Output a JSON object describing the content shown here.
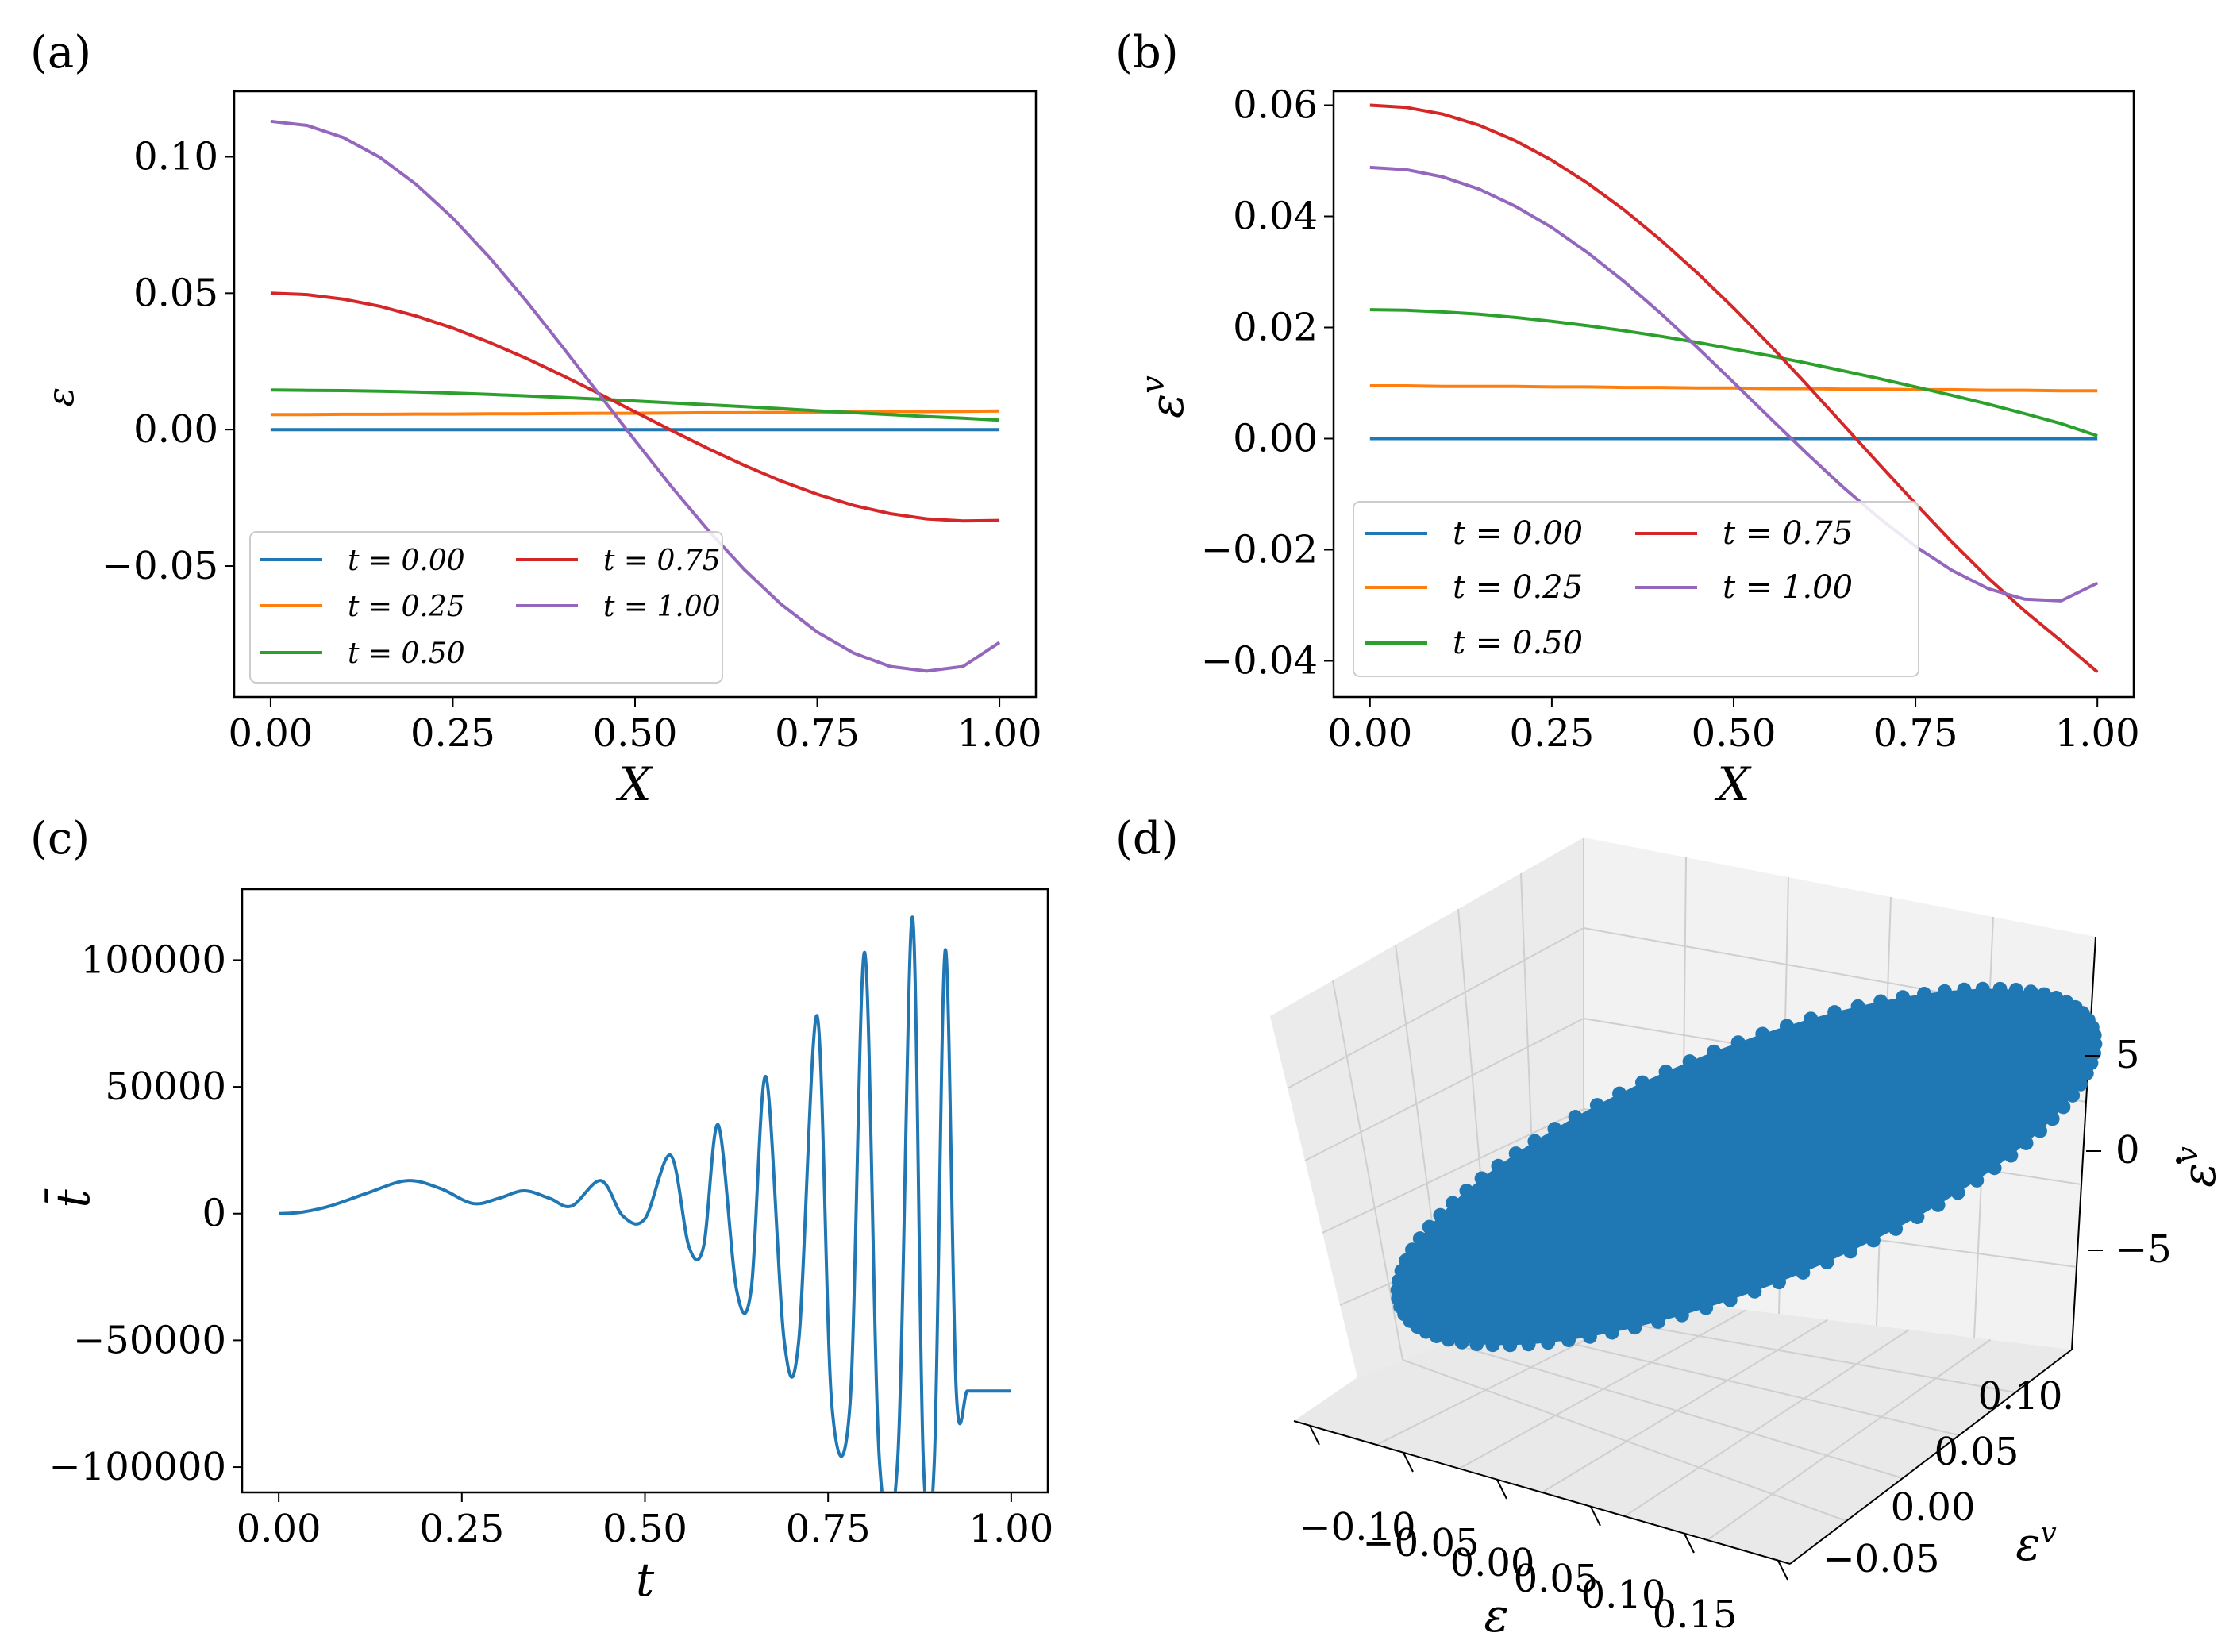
{
  "panels": {
    "a": {
      "label": "(a)",
      "type": "line",
      "xlabel": "X",
      "ylabel": "ε",
      "xlim": [
        -0.05,
        1.05
      ],
      "ylim": [
        -0.098,
        0.124
      ],
      "xticks": [
        0.0,
        0.25,
        0.5,
        0.75,
        1.0
      ],
      "xtick_labels": [
        "0.00",
        "0.25",
        "0.50",
        "0.75",
        "1.00"
      ],
      "yticks": [
        0.1,
        0.05,
        0.0,
        -0.05
      ],
      "ytick_labels": [
        "0.10",
        "0.05",
        "0.00",
        "−0.05"
      ],
      "legend_labels": [
        "t = 0.00",
        "t = 0.25",
        "t = 0.50",
        "t = 0.75",
        "t = 1.00"
      ],
      "series": [
        {
          "name": "t = 0.00",
          "color": "#1f77b4",
          "values": [
            0,
            0,
            0,
            0,
            0,
            0,
            0,
            0,
            0,
            0,
            0,
            0,
            0,
            0,
            0,
            0,
            0,
            0,
            0,
            0,
            0
          ]
        },
        {
          "name": "t = 0.25",
          "color": "#ff7f0e",
          "values": [
            0.0055,
            0.0055,
            0.0056,
            0.0056,
            0.0057,
            0.0057,
            0.0058,
            0.0058,
            0.0059,
            0.006,
            0.006,
            0.0061,
            0.0062,
            0.0062,
            0.0063,
            0.0064,
            0.0065,
            0.0066,
            0.0066,
            0.0067,
            0.0068
          ]
        },
        {
          "name": "t = 0.50",
          "color": "#2ca02c",
          "values": [
            0.0145,
            0.0144,
            0.0143,
            0.0141,
            0.0138,
            0.0134,
            0.0129,
            0.0124,
            0.0118,
            0.0112,
            0.0105,
            0.0098,
            0.0091,
            0.0084,
            0.0077,
            0.0069,
            0.0062,
            0.0055,
            0.0048,
            0.0042,
            0.0035
          ]
        },
        {
          "name": "t = 0.75",
          "color": "#d62728",
          "values": [
            0.05,
            0.0495,
            0.0478,
            0.0452,
            0.0416,
            0.0372,
            0.032,
            0.0262,
            0.0199,
            0.0133,
            0.0065,
            -0.0003,
            -0.0069,
            -0.0131,
            -0.0188,
            -0.0237,
            -0.0278,
            -0.0308,
            -0.0327,
            -0.0335,
            -0.0333
          ]
        },
        {
          "name": "t = 1.00",
          "color": "#9467bd",
          "values": [
            0.113,
            0.1115,
            0.107,
            0.0998,
            0.0898,
            0.0775,
            0.0632,
            0.0474,
            0.0305,
            0.0132,
            -0.004,
            -0.0209,
            -0.0368,
            -0.0513,
            -0.0639,
            -0.0742,
            -0.0819,
            -0.0868,
            -0.0885,
            -0.0868,
            -0.078
          ]
        }
      ]
    },
    "b": {
      "label": "(b)",
      "type": "line",
      "xlabel": "X",
      "ylabel": "εv",
      "ylabel_base": "ε",
      "ylabel_sup": "v",
      "xlim": [
        -0.05,
        1.05
      ],
      "ylim": [
        -0.0465,
        0.0625
      ],
      "xticks": [
        0.0,
        0.25,
        0.5,
        0.75,
        1.0
      ],
      "xtick_labels": [
        "0.00",
        "0.25",
        "0.50",
        "0.75",
        "1.00"
      ],
      "yticks": [
        0.06,
        0.04,
        0.02,
        0.0,
        -0.02,
        -0.04
      ],
      "ytick_labels": [
        "0.06",
        "0.04",
        "0.02",
        "0.00",
        "−0.02",
        "−0.04"
      ],
      "legend_labels": [
        "t = 0.00",
        "t = 0.25",
        "t = 0.50",
        "t = 0.75",
        "t = 1.00"
      ],
      "series": [
        {
          "name": "t = 0.00",
          "color": "#1f77b4",
          "values": [
            0,
            0,
            0,
            0,
            0,
            0,
            0,
            0,
            0,
            0,
            0,
            0,
            0,
            0,
            0,
            0,
            0,
            0,
            0,
            0,
            0
          ]
        },
        {
          "name": "t = 0.25",
          "color": "#ff7f0e",
          "values": [
            0.0095,
            0.0095,
            0.0094,
            0.0094,
            0.0094,
            0.0093,
            0.0093,
            0.0092,
            0.0092,
            0.0091,
            0.0091,
            0.009,
            0.009,
            0.0089,
            0.0089,
            0.0088,
            0.0088,
            0.0087,
            0.0087,
            0.0086,
            0.0086
          ]
        },
        {
          "name": "t = 0.50",
          "color": "#2ca02c",
          "values": [
            0.0232,
            0.0231,
            0.0228,
            0.0224,
            0.0218,
            0.0211,
            0.0203,
            0.0194,
            0.0184,
            0.0173,
            0.0161,
            0.0149,
            0.0136,
            0.0122,
            0.0108,
            0.0093,
            0.0078,
            0.0062,
            0.0045,
            0.0027,
            0.0005
          ]
        },
        {
          "name": "t = 0.75",
          "color": "#d62728",
          "values": [
            0.06,
            0.0596,
            0.0584,
            0.0564,
            0.0536,
            0.0501,
            0.0459,
            0.0411,
            0.0357,
            0.0298,
            0.0235,
            0.0168,
            0.0098,
            0.0026,
            -0.0046,
            -0.0117,
            -0.0186,
            -0.0251,
            -0.031,
            -0.0364,
            -0.042
          ]
        },
        {
          "name": "t = 1.00",
          "color": "#9467bd",
          "values": [
            0.0488,
            0.0484,
            0.0471,
            0.0449,
            0.0418,
            0.038,
            0.0334,
            0.0282,
            0.0225,
            0.0164,
            0.0101,
            0.0037,
            -0.0026,
            -0.0087,
            -0.0143,
            -0.0194,
            -0.0237,
            -0.027,
            -0.0289,
            -0.0292,
            -0.026
          ]
        }
      ]
    },
    "c": {
      "label": "(c)",
      "type": "line",
      "xlabel": "t",
      "ylabel": "t̄",
      "ylabel_base": "t",
      "xlim": [
        -0.05,
        1.05
      ],
      "ylim": [
        -110000,
        128000
      ],
      "xticks": [
        0.0,
        0.25,
        0.5,
        0.75,
        1.0
      ],
      "xtick_labels": [
        "0.00",
        "0.25",
        "0.50",
        "0.75",
        "1.00"
      ],
      "yticks": [
        100000,
        50000,
        0,
        -50000,
        -100000
      ],
      "ytick_labels": [
        "100000",
        "50000",
        "0",
        "−50000",
        "−100000"
      ],
      "series": [
        {
          "name": "t̄",
          "color": "#1f77b4",
          "x": [
            0.0,
            0.03,
            0.07,
            0.12,
            0.175,
            0.22,
            0.265,
            0.3,
            0.335,
            0.37,
            0.4,
            0.44,
            0.47,
            0.5,
            0.535,
            0.56,
            0.58,
            0.6,
            0.625,
            0.645,
            0.665,
            0.69,
            0.71,
            0.735,
            0.755,
            0.78,
            0.8,
            0.82,
            0.845,
            0.865,
            0.88,
            0.895,
            0.91,
            0.925,
            0.94,
            0.955,
            0.97,
            0.985,
            1.0
          ],
          "values": [
            0,
            500,
            3000,
            8000,
            13000,
            10000,
            4000,
            6000,
            9000,
            6000,
            3000,
            13000,
            -1000,
            -2000,
            23000,
            -13000,
            -13000,
            35000,
            -30000,
            -30000,
            54000,
            -50000,
            -50000,
            78000,
            -75000,
            -75000,
            103000,
            -97000,
            -97000,
            117000,
            -97000,
            -98000,
            104000,
            -70000,
            -70000,
            -70000,
            -70000,
            -70000,
            -70000
          ]
        }
      ]
    },
    "d": {
      "label": "(d)",
      "type": "scatter3d",
      "xlabel": "ε",
      "ylabel": "εv",
      "zlabel": "ε̇v",
      "x_base": "ε",
      "y_base": "ε",
      "y_sup": "v",
      "z_base": "ε",
      "z_sup": "v",
      "color": "#1f77b4",
      "xticks": [
        -0.1,
        -0.05,
        0.0,
        0.05,
        0.1,
        0.15
      ],
      "xtick_labels": [
        "−0.10",
        "−0.05",
        "0.00",
        "0.05",
        "0.10",
        "0.15"
      ],
      "yticks": [
        -0.05,
        0.0,
        0.05,
        0.1
      ],
      "ytick_labels": [
        "−0.05",
        "0.00",
        "0.05",
        "0.10"
      ],
      "zticks": [
        5,
        0,
        -5
      ],
      "ztick_labels": [
        "5",
        "0",
        "−5"
      ]
    }
  }
}
